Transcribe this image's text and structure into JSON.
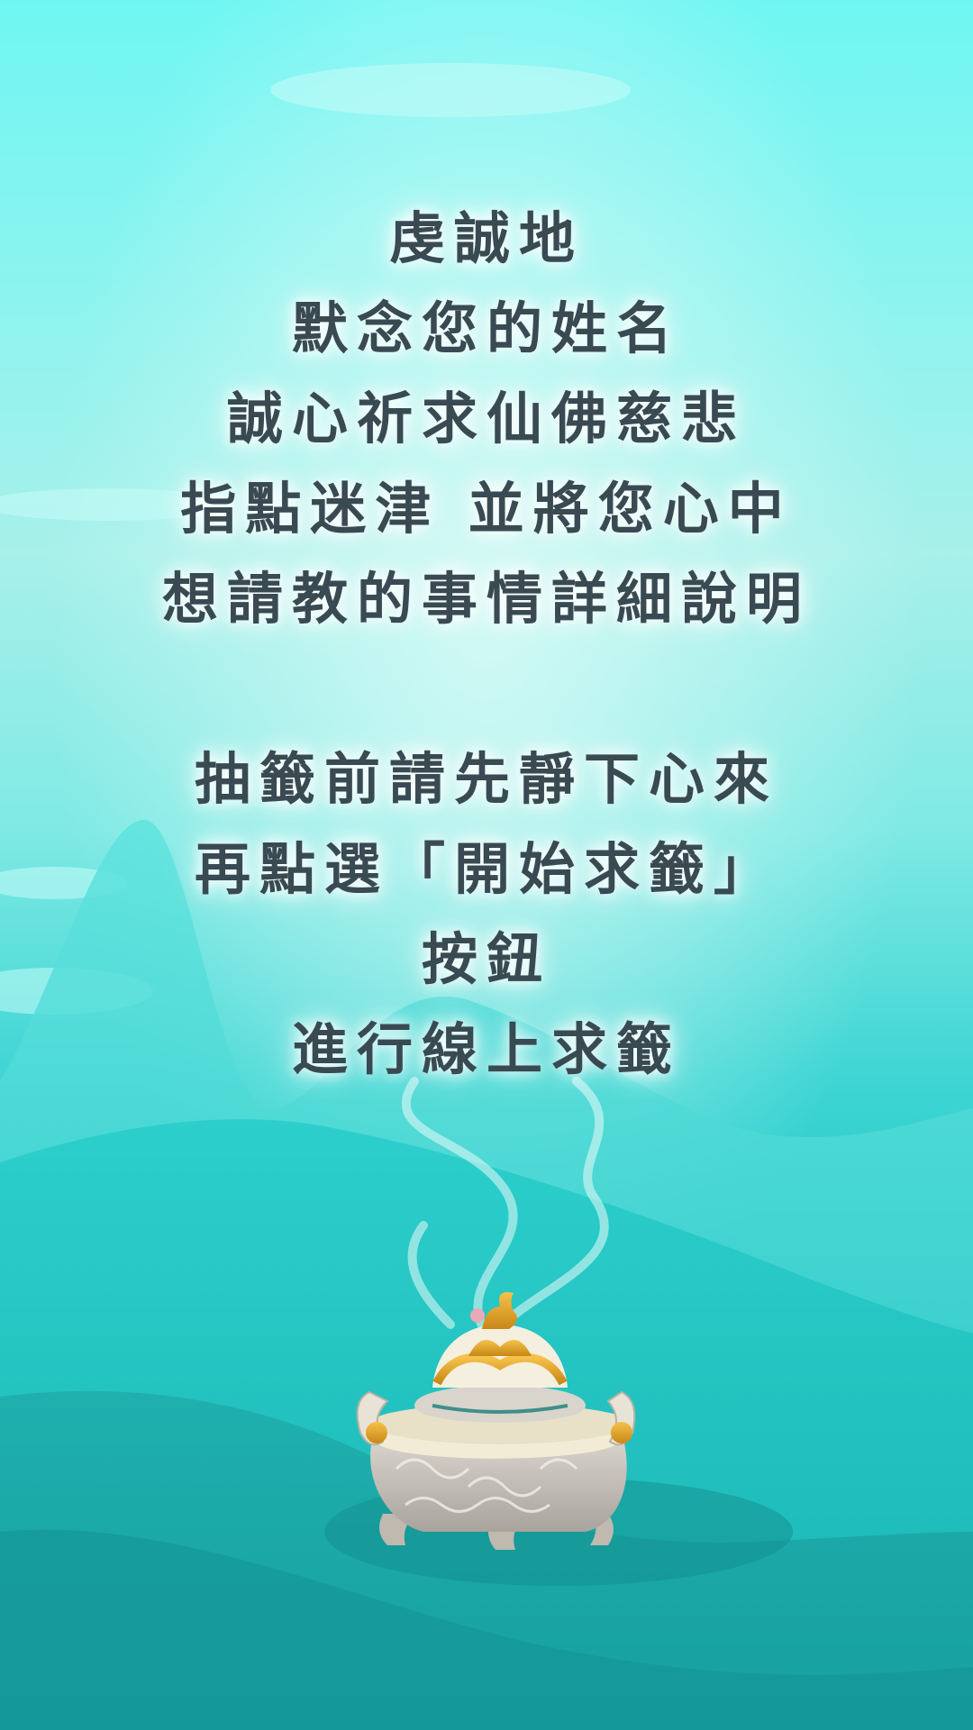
{
  "instructions": {
    "paragraph1": [
      "虔誠地",
      "默念您的姓名",
      "誠心祈求仙佛慈悲",
      "指點迷津 並將您心中",
      "想請教的事情詳細說明"
    ],
    "paragraph2": [
      "抽籤前請先靜下心來",
      "再點選「開始求籤」",
      "按鈕",
      "進行線上求籤"
    ]
  },
  "colors": {
    "text": "#3a4a52",
    "sky_top": "#6ff6f3",
    "teal_deep": "#18b7b6"
  },
  "icons": {
    "incense_burner": "incense-burner-icon"
  }
}
